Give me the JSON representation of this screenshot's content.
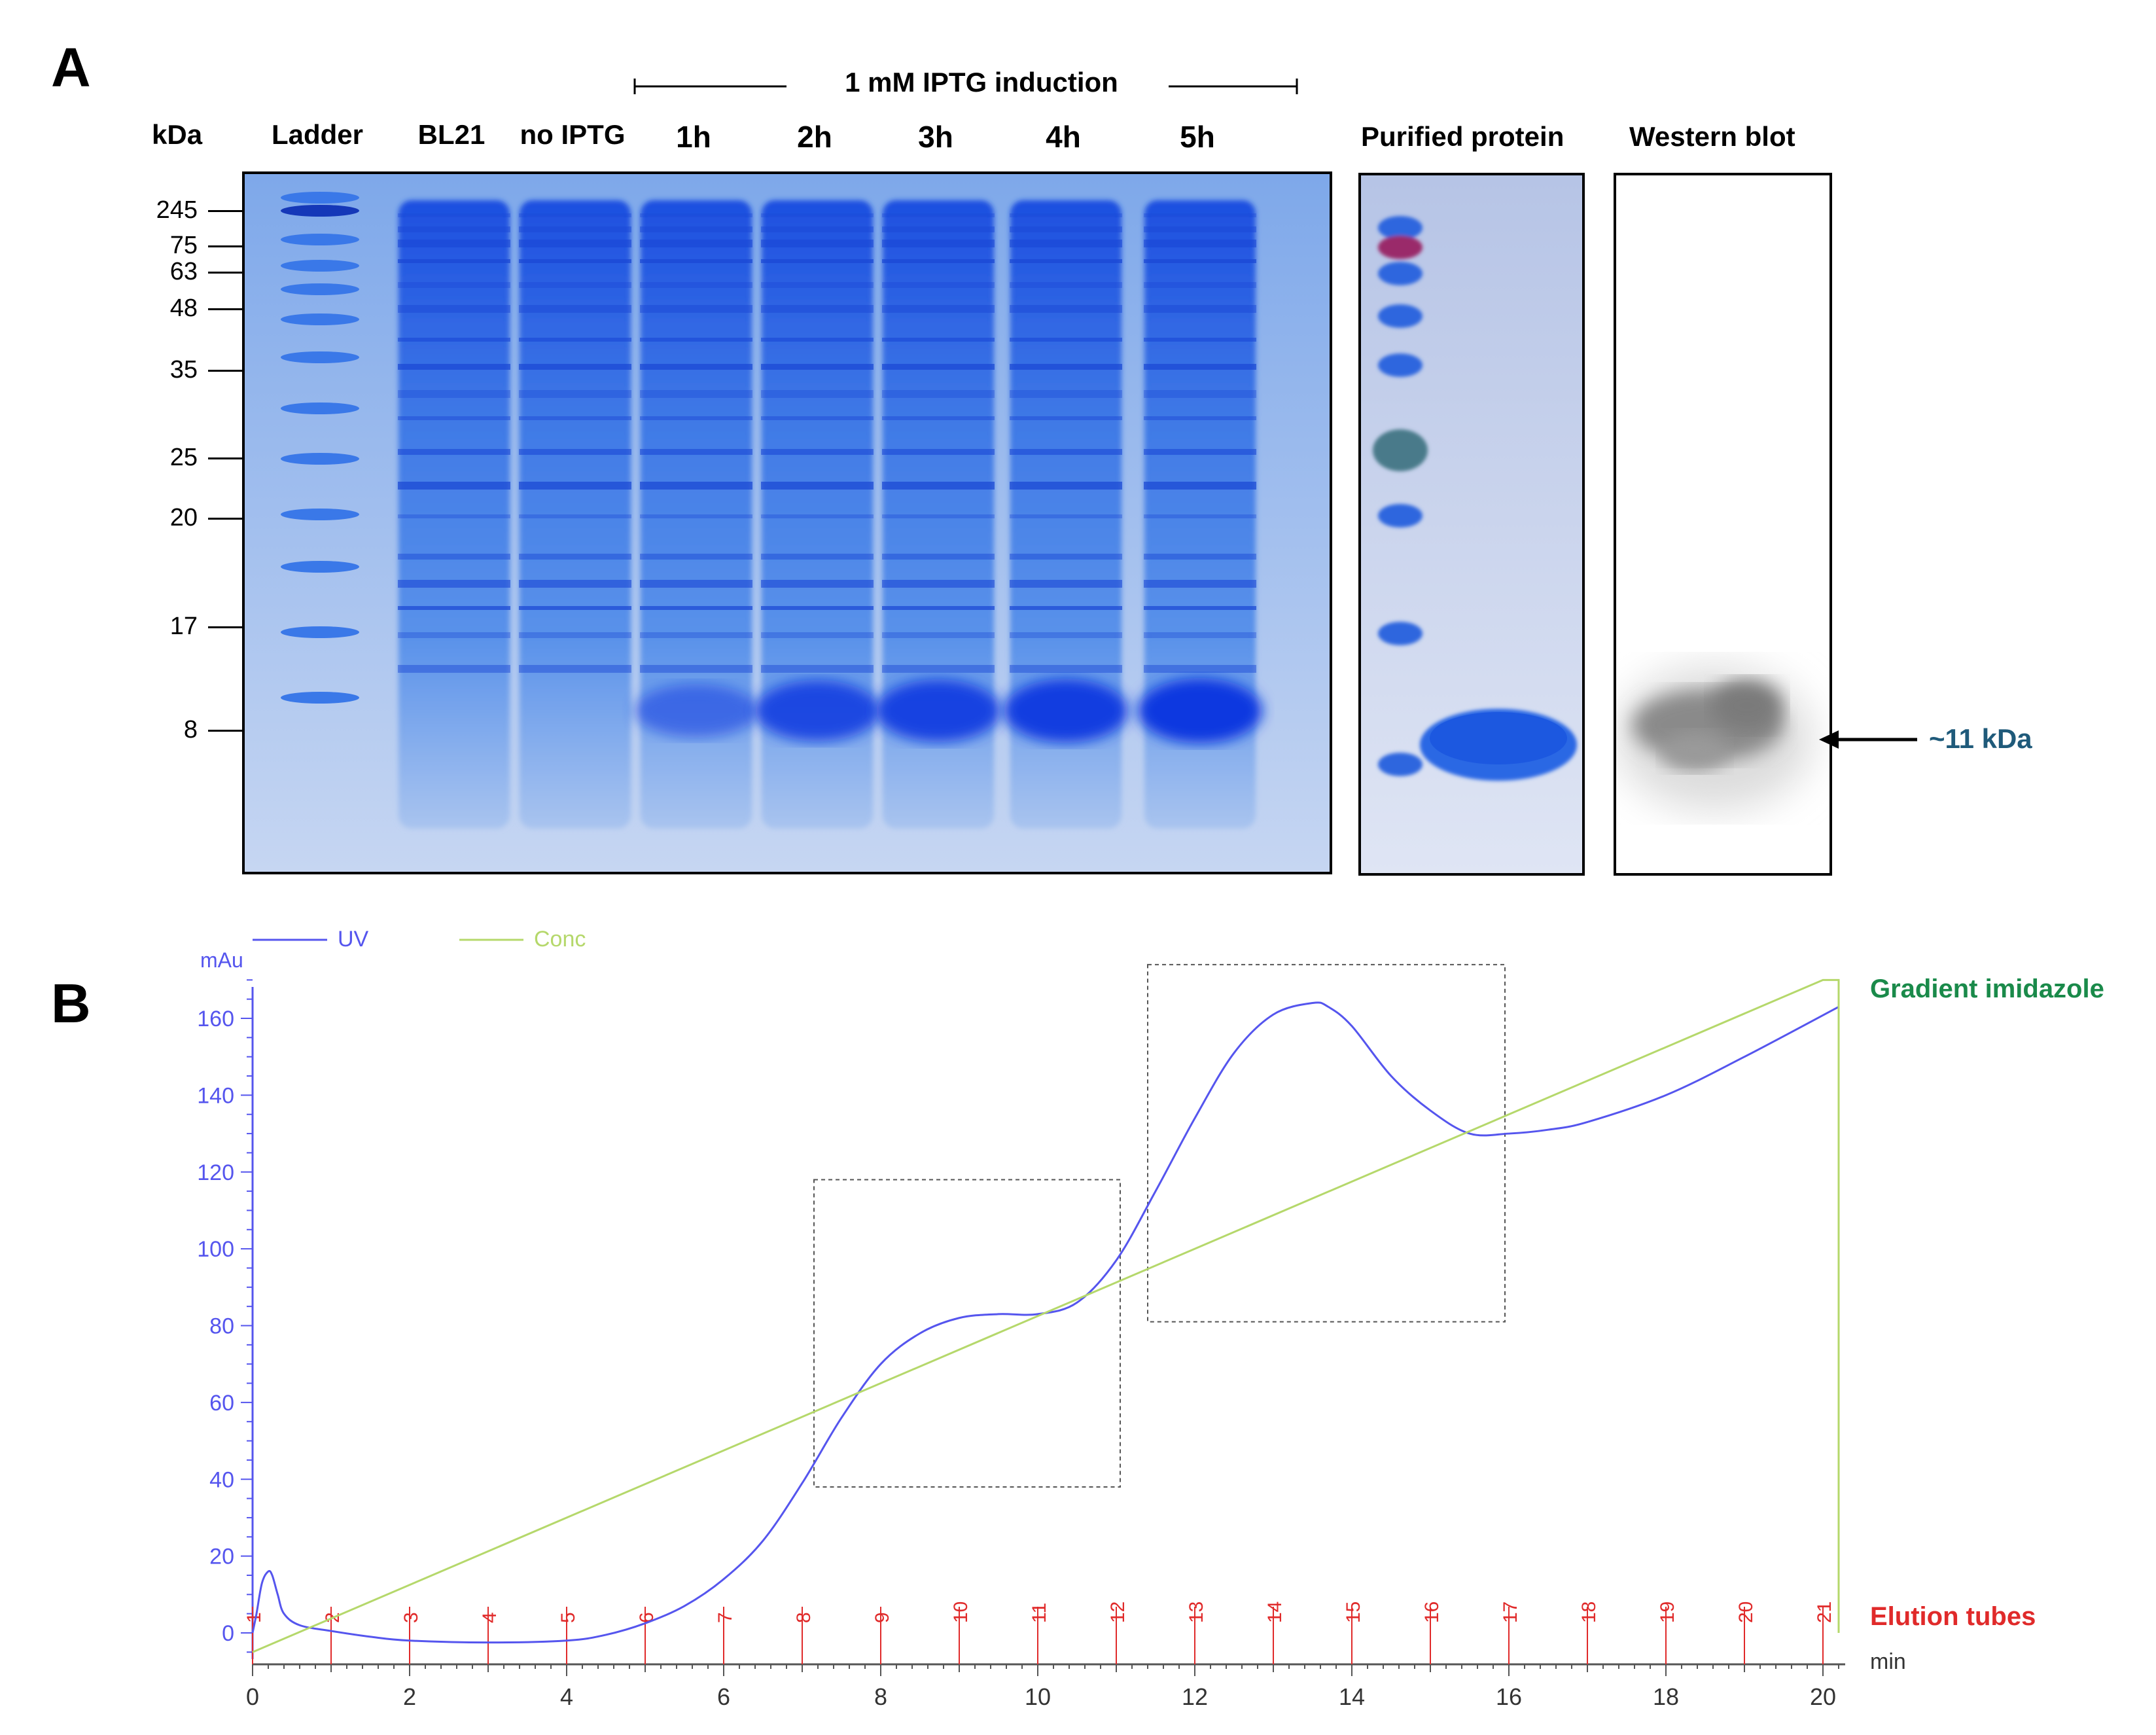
{
  "panel_a": {
    "letter": "A",
    "kda_unit": "kDa",
    "induction_label": "1 mM IPTG induction",
    "lanes": [
      "Ladder",
      "BL21",
      "no IPTG",
      "1h",
      "2h",
      "3h",
      "4h",
      "5h"
    ],
    "purified_label": "Purified protein",
    "western_label": "Western blot",
    "markers": [
      "245",
      "75",
      "63",
      "48",
      "35",
      "25",
      "20",
      "17",
      "8"
    ],
    "arrow_label": "~11 kDa",
    "colors": {
      "gel": "#5a8fe0",
      "band": "#1f4fe0",
      "arrow_label": "#1f5a7a"
    }
  },
  "panel_b": {
    "letter": "B",
    "chart_data": {
      "type": "line",
      "ylabel": "mAu",
      "xlabel": "min",
      "xlim": [
        0,
        20.2
      ],
      "ylim": [
        0,
        170
      ],
      "xticks": [
        "0",
        "2",
        "4",
        "6",
        "8",
        "10",
        "12",
        "14",
        "16",
        "18",
        "20"
      ],
      "yticks": [
        "0",
        "20",
        "40",
        "60",
        "80",
        "100",
        "120",
        "140",
        "160"
      ],
      "legend": [
        {
          "name": "UV",
          "color": "#5555ee"
        },
        {
          "name": "Conc",
          "color": "#b5d86b"
        }
      ],
      "series": [
        {
          "name": "UV",
          "color": "#5555ee",
          "x": [
            0,
            0.05,
            0.12,
            0.2,
            0.25,
            0.32,
            0.4,
            0.6,
            1,
            1.5,
            2,
            3,
            4,
            4.5,
            5,
            5.5,
            6,
            6.5,
            7,
            7.5,
            8,
            8.5,
            9,
            9.5,
            10,
            10.5,
            11,
            11.5,
            12,
            12.5,
            13,
            13.5,
            13.7,
            14,
            14.5,
            15,
            15.5,
            16,
            16.5,
            17,
            18,
            19,
            20.2
          ],
          "y": [
            0,
            5,
            13,
            16,
            15,
            10,
            5,
            2,
            0.5,
            -1,
            -2,
            -2.5,
            -2,
            -0.5,
            2.5,
            7,
            14,
            24,
            39,
            56,
            70,
            78,
            82,
            83,
            83,
            86,
            97,
            115,
            134,
            151,
            161,
            164,
            163,
            158,
            145,
            136,
            130,
            130,
            131,
            133,
            140,
            150,
            163
          ],
          "estimated": true
        },
        {
          "name": "Conc",
          "color": "#b5d86b",
          "x": [
            0,
            20,
            20.2,
            20.2
          ],
          "y": [
            -5,
            170,
            170,
            0
          ],
          "estimated": true
        }
      ],
      "boxes": [
        {
          "x0": 7.15,
          "x1": 11.05,
          "y0": 38,
          "y1": 118
        },
        {
          "x0": 11.4,
          "x1": 15.95,
          "y0": 81,
          "y1": 174
        }
      ],
      "elution_tubes": {
        "label": "Elution tubes",
        "labels": [
          "1",
          "2",
          "3",
          "4",
          "5",
          "6",
          "7",
          "8",
          "9",
          "10",
          "11",
          "12",
          "13",
          "14",
          "15",
          "16",
          "17",
          "18",
          "19",
          "20",
          "21"
        ],
        "x": [
          0,
          1,
          2,
          3,
          4,
          5,
          6,
          7,
          8,
          9,
          10,
          11,
          12,
          13,
          14,
          15,
          16,
          17,
          18,
          19,
          20
        ],
        "color": "#e02a2a"
      },
      "gradient_label": "Gradient imidazole",
      "gradient_label_color": "#1a8a4a",
      "grid": false
    }
  }
}
